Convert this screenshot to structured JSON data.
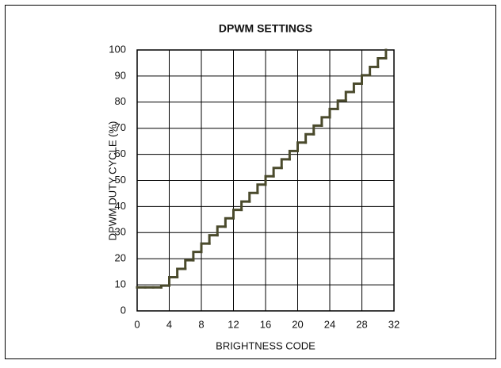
{
  "chart_data": {
    "type": "step",
    "title": "DPWM SETTINGS",
    "xlabel": "BRIGHTNESS CODE",
    "ylabel": "DPWM DUTY CYCLE (%)",
    "x": [
      0,
      1,
      2,
      3,
      4,
      5,
      6,
      7,
      8,
      9,
      10,
      11,
      12,
      13,
      14,
      15,
      16,
      17,
      18,
      19,
      20,
      21,
      22,
      23,
      24,
      25,
      26,
      27,
      28,
      29,
      30,
      31
    ],
    "values": [
      9,
      9,
      9,
      9.7,
      12.9,
      16.1,
      19.4,
      22.6,
      25.8,
      29.0,
      32.3,
      35.5,
      38.7,
      41.9,
      45.2,
      48.4,
      51.6,
      54.8,
      58.1,
      61.3,
      64.5,
      67.7,
      71.0,
      74.2,
      77.4,
      80.6,
      83.9,
      87.1,
      90.3,
      93.5,
      96.8,
      100
    ],
    "color": "#4a4a2c",
    "xlim": [
      0,
      32
    ],
    "xticks": [
      0,
      4,
      8,
      12,
      16,
      20,
      24,
      28,
      32
    ],
    "ylim": [
      0,
      100
    ],
    "yticks": [
      0,
      10,
      20,
      30,
      40,
      50,
      60,
      70,
      80,
      90,
      100
    ],
    "grid": true
  }
}
